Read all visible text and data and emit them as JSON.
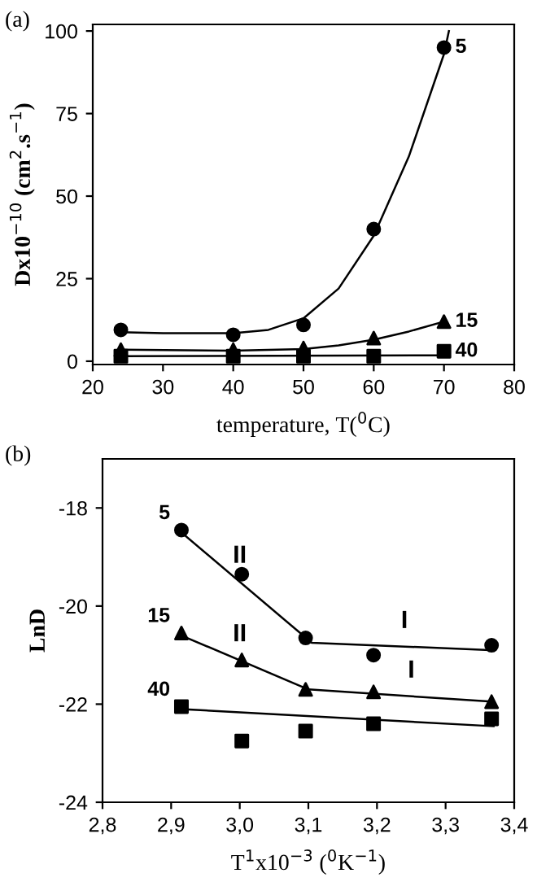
{
  "chart_data": [
    {
      "type": "scatter",
      "title": "(a)",
      "xlabel": "temperature, T($^{0}$C)",
      "ylabel": "Dx10$^{−10}$ (cm$^{2}$.s$^{−1}$)",
      "xlim": [
        20,
        80
      ],
      "xticks": [
        20,
        30,
        40,
        50,
        60,
        70,
        80
      ],
      "ylim": [
        -1,
        102
      ],
      "yticks": [
        0,
        25,
        50,
        75,
        100
      ],
      "grid": false,
      "legend": false,
      "series": [
        {
          "type": "scatter",
          "marker": "circle",
          "color": "#000000",
          "x": [
            24,
            40,
            50,
            60,
            70
          ],
          "values": [
            9.5,
            8,
            11,
            40,
            95
          ]
        },
        {
          "type": "scatter",
          "marker": "triangle",
          "color": "#000000",
          "x": [
            24,
            40,
            50,
            60,
            70
          ],
          "values": [
            3.5,
            3.5,
            4,
            7,
            12
          ]
        },
        {
          "type": "scatter",
          "marker": "square",
          "color": "#000000",
          "x": [
            24,
            40,
            50,
            60,
            70
          ],
          "values": [
            1.5,
            1.5,
            1.5,
            1.5,
            3
          ]
        },
        {
          "type": "line",
          "color": "#000000",
          "x": [
            24,
            30,
            40,
            45,
            50,
            55,
            60,
            65,
            70,
            70.7
          ],
          "values": [
            8.8,
            8.5,
            8.5,
            9.5,
            13,
            22,
            38,
            62,
            93,
            100
          ]
        },
        {
          "type": "line",
          "color": "#000000",
          "x": [
            24,
            40,
            50,
            55,
            60,
            65,
            70
          ],
          "values": [
            3.5,
            3.2,
            3.7,
            4.8,
            6.5,
            9,
            12
          ]
        },
        {
          "type": "line",
          "color": "#000000",
          "x": [
            24,
            70
          ],
          "values": [
            1.5,
            1.8
          ]
        }
      ],
      "annotations": [
        {
          "text": "5",
          "x": 70,
          "y": 95
        },
        {
          "text": "15",
          "x": 70,
          "y": 12
        },
        {
          "text": "40",
          "x": 70,
          "y": 3
        }
      ]
    },
    {
      "type": "scatter",
      "title": "(b)",
      "xlabel": "T$^{1}$x10$^{−3}$ ($^{0}$K$^{−1}$)",
      "ylabel": "LnD",
      "xlim": [
        2.8,
        3.4
      ],
      "xticks": [
        {
          "value": 2.8,
          "label": "2,8"
        },
        {
          "value": 2.9,
          "label": "2,9"
        },
        {
          "value": 3.0,
          "label": "3,0"
        },
        {
          "value": 3.1,
          "label": "3,1"
        },
        {
          "value": 3.2,
          "label": "3,2"
        },
        {
          "value": 3.3,
          "label": "3,3"
        },
        {
          "value": 3.4,
          "label": "3,4"
        }
      ],
      "ylim": [
        -24,
        -17
      ],
      "yticks": [
        -24,
        -22,
        -20,
        -18
      ],
      "grid": false,
      "legend": false,
      "series": [
        {
          "type": "scatter",
          "marker": "circle",
          "color": "#000000",
          "x": [
            2.915,
            3.003,
            3.096,
            3.195,
            3.367
          ],
          "values": [
            -18.45,
            -19.35,
            -20.65,
            -21.0,
            -20.8
          ]
        },
        {
          "type": "scatter",
          "marker": "triangle",
          "color": "#000000",
          "x": [
            2.915,
            3.003,
            3.096,
            3.195,
            3.367
          ],
          "values": [
            -20.55,
            -21.1,
            -21.7,
            -21.75,
            -21.95
          ]
        },
        {
          "type": "scatter",
          "marker": "square",
          "color": "#000000",
          "x": [
            2.915,
            3.003,
            3.096,
            3.195,
            3.367
          ],
          "values": [
            -22.05,
            -22.75,
            -22.55,
            -22.4,
            -22.3
          ]
        },
        {
          "type": "line",
          "color": "#000000",
          "x": [
            2.915,
            3.105,
            3.37
          ],
          "values": [
            -18.5,
            -20.75,
            -20.9
          ]
        },
        {
          "type": "line",
          "color": "#000000",
          "x": [
            2.915,
            3.1,
            3.37
          ],
          "values": [
            -20.6,
            -21.7,
            -21.95
          ]
        },
        {
          "type": "line",
          "color": "#000000",
          "x": [
            2.915,
            3.37
          ],
          "values": [
            -22.1,
            -22.45
          ]
        }
      ],
      "annotations": [
        {
          "text": "5",
          "x": 2.915,
          "y": -18.45
        },
        {
          "text": "15",
          "x": 2.915,
          "y": -20.55
        },
        {
          "text": "40",
          "x": 2.915,
          "y": -22.05
        },
        {
          "text": "II",
          "x": 3.0,
          "y": -19.5
        },
        {
          "text": "II",
          "x": 3.0,
          "y": -21.1
        },
        {
          "text": "I",
          "x": 3.24,
          "y": -20.83
        },
        {
          "text": "I",
          "x": 3.25,
          "y": -21.84
        }
      ]
    }
  ]
}
